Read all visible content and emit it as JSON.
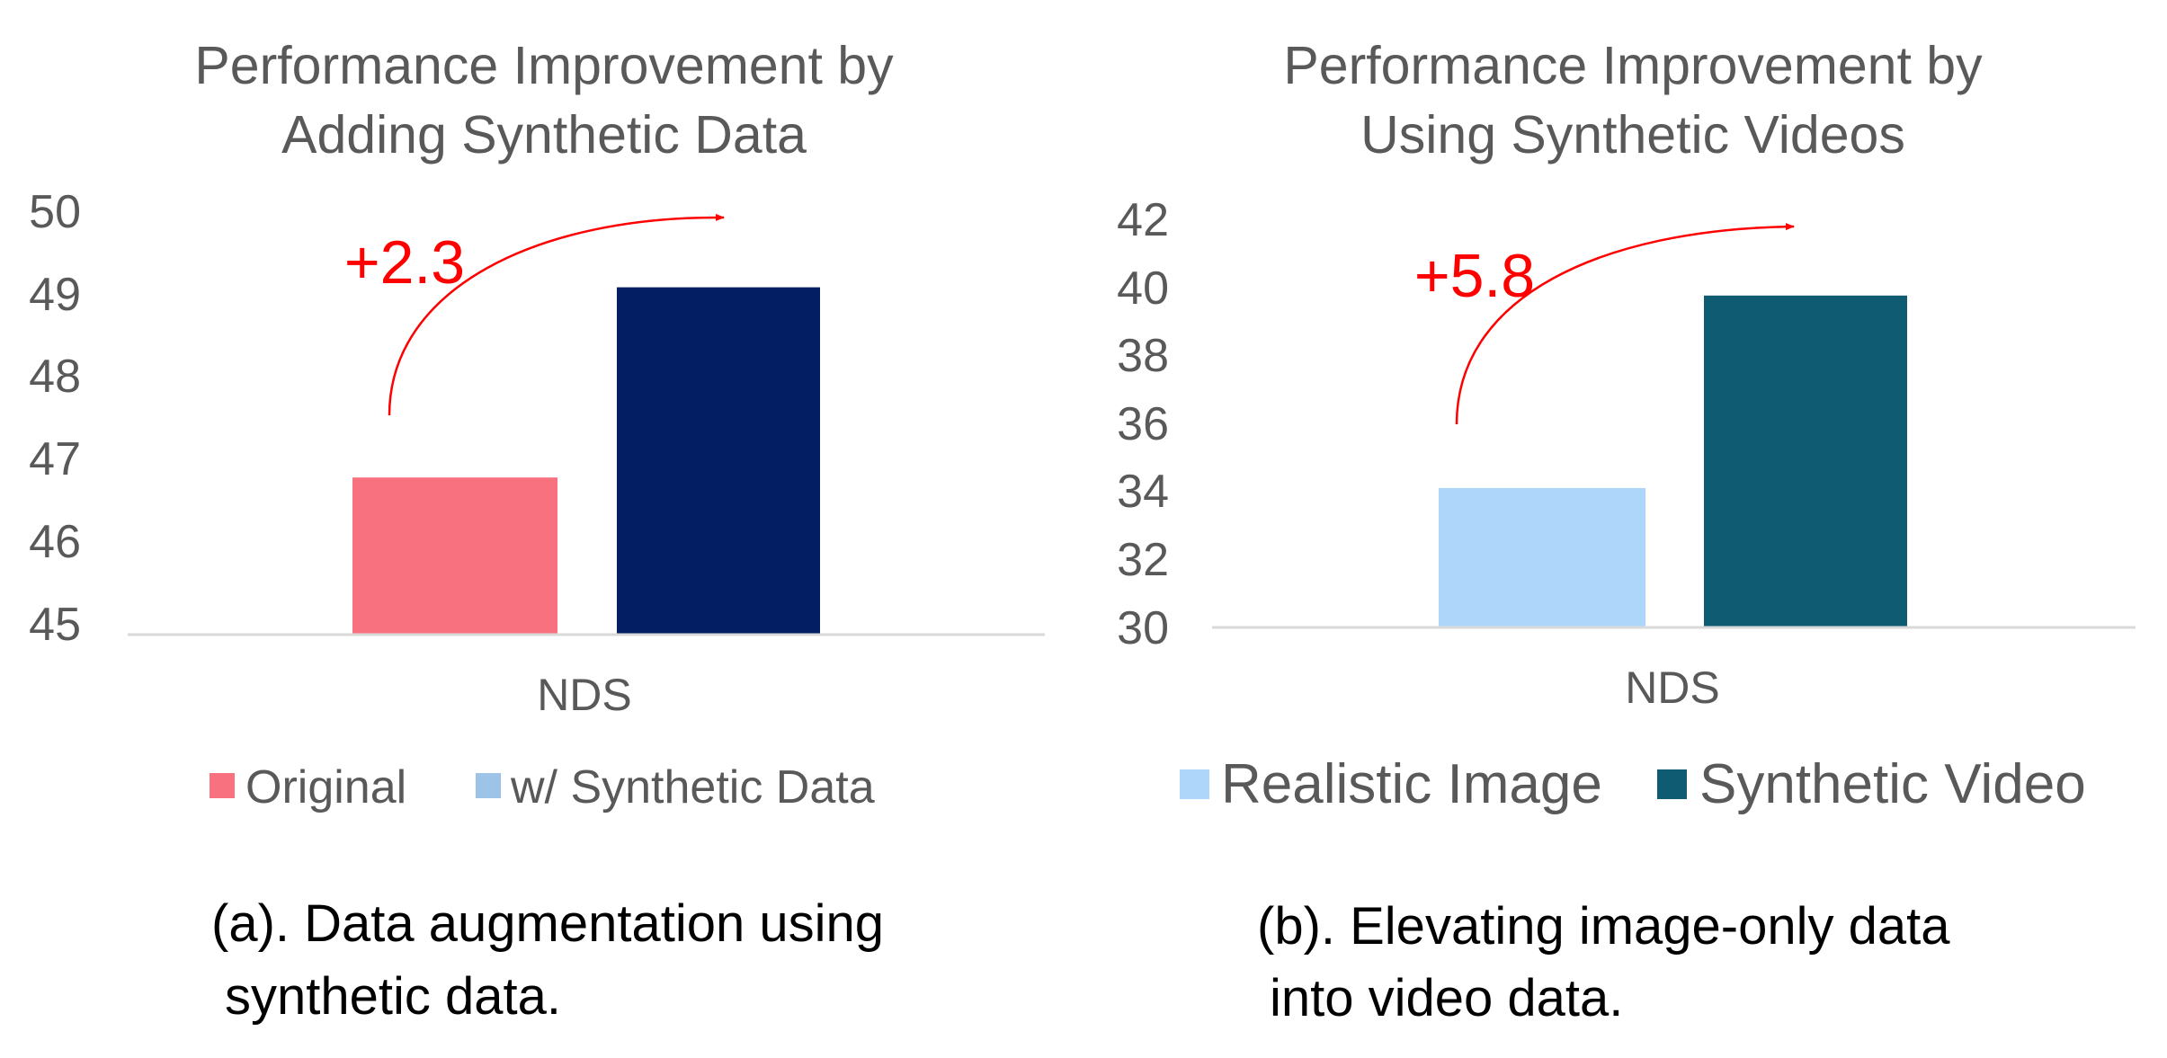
{
  "chart_data": [
    {
      "type": "bar",
      "title": [
        "Performance Improvement by",
        "Adding Synthetic Data"
      ],
      "categories": [
        "NDS"
      ],
      "series": [
        {
          "name": "Original",
          "values": [
            46.9
          ],
          "color": "#f7717f"
        },
        {
          "name": "w/ Synthetic Data",
          "values": [
            49.2
          ],
          "color": "#041e63",
          "legend_color": "#9dc3e6"
        }
      ],
      "ylim": [
        45,
        50
      ],
      "yticks": [
        "45",
        "46",
        "47",
        "48",
        "49",
        "50"
      ],
      "grid": false,
      "legend_position": "bottom",
      "annotation": {
        "text": "+2.3",
        "color": "#ff0000"
      },
      "caption": [
        "(a). Data augmentation using",
        "synthetic data."
      ]
    },
    {
      "type": "bar",
      "title": [
        "Performance Improvement by",
        "Using Synthetic Videos"
      ],
      "categories": [
        "NDS"
      ],
      "series": [
        {
          "name": "Realistic Image",
          "values": [
            34.2
          ],
          "color": "#add6fa"
        },
        {
          "name": "Synthetic Video",
          "values": [
            40.0
          ],
          "color": "#0f5c72"
        }
      ],
      "ylim": [
        30,
        42
      ],
      "yticks": [
        "30",
        "32",
        "34",
        "36",
        "38",
        "40",
        "42"
      ],
      "grid": false,
      "legend_position": "bottom",
      "annotation": {
        "text": "+5.8",
        "color": "#ff0000"
      },
      "caption": [
        "(b). Elevating image-only data",
        "into video data."
      ]
    }
  ]
}
